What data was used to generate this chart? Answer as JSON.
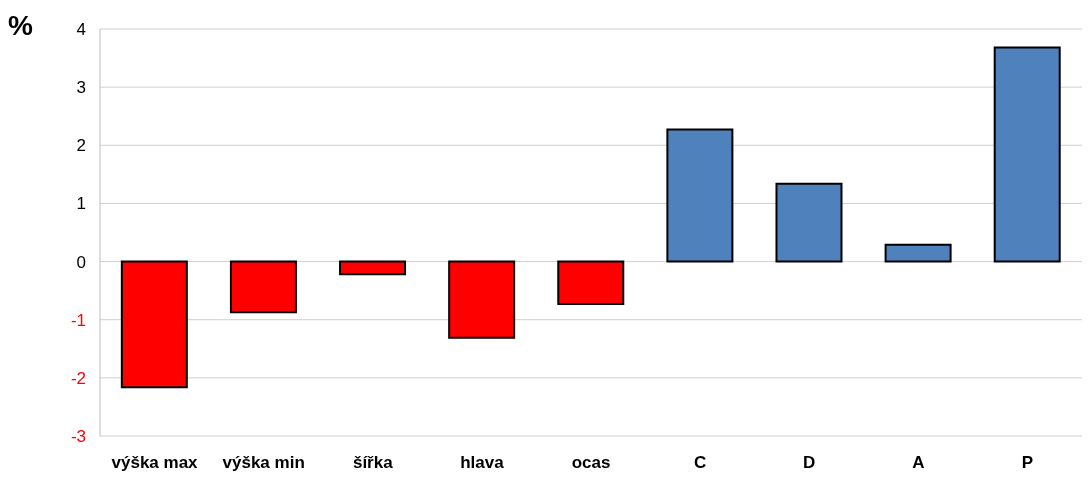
{
  "chart_data": {
    "type": "bar",
    "ylabel": "%",
    "categories": [
      "výška max",
      "výška min",
      "šířka",
      "hlava",
      "ocas",
      "C",
      "D",
      "A",
      "P"
    ],
    "values": [
      -2.16,
      -0.87,
      -0.22,
      -1.31,
      -0.73,
      2.27,
      1.34,
      0.29,
      3.68
    ],
    "colors": [
      "#ff0000",
      "#ff0000",
      "#ff0000",
      "#ff0000",
      "#ff0000",
      "#4f81bd",
      "#4f81bd",
      "#4f81bd",
      "#4f81bd"
    ],
    "ylim": [
      -3,
      4
    ],
    "yticks": [
      -3,
      -2,
      -1,
      0,
      1,
      2,
      3,
      4
    ],
    "grid": "y"
  }
}
